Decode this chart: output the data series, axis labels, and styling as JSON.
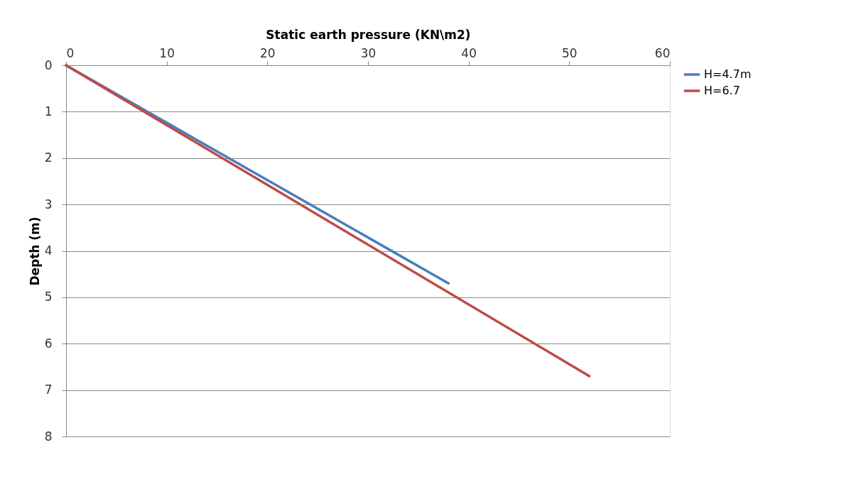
{
  "chart_data": {
    "type": "line",
    "xlabel": "Static earth pressure (KN\\m2)",
    "ylabel": "Depth (m)",
    "xlim": [
      0,
      60
    ],
    "xticks": [
      0,
      10,
      20,
      30,
      40,
      50,
      60
    ],
    "ylim": [
      8,
      0
    ],
    "yticks": [
      0,
      1,
      2,
      3,
      4,
      5,
      6,
      7,
      8
    ],
    "grid": "y",
    "legend": "right",
    "marker": "none",
    "line_style": "solid",
    "series": [
      {
        "name": "H=4.7m",
        "color": "#4a7ebb",
        "x": [
          0,
          38
        ],
        "values": [
          0,
          4.7
        ]
      },
      {
        "name": "H=6.7",
        "color": "#be4b48",
        "x": [
          0,
          52
        ],
        "values": [
          0,
          6.7
        ]
      }
    ]
  }
}
